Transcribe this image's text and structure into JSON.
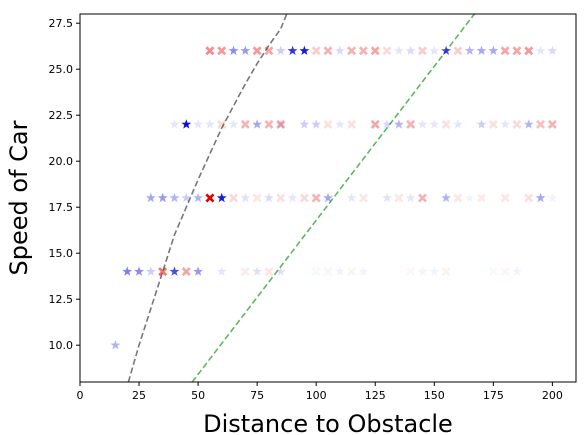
{
  "chart_data": {
    "type": "scatter",
    "title": "",
    "xlabel": "Distance to Obstacle",
    "ylabel": "Speed of Car",
    "xlim": [
      0,
      210
    ],
    "ylim": [
      8,
      28
    ],
    "grid": false,
    "x_ticks": [
      0,
      25,
      50,
      75,
      100,
      125,
      150,
      175,
      200
    ],
    "y_ticks": [
      10.0,
      12.5,
      15.0,
      17.5,
      20.0,
      22.5,
      25.0,
      27.5
    ],
    "x_tick_labels": [
      "0",
      "25",
      "50",
      "75",
      "100",
      "125",
      "150",
      "175",
      "200"
    ],
    "y_tick_labels": [
      "10.0",
      "12.5",
      "15.0",
      "17.5",
      "20.0",
      "22.5",
      "25.0",
      "27.5"
    ],
    "colors": {
      "star": "#0000dd",
      "cross": "#e00000",
      "dashed_gray": "#777777",
      "dashed_green": "#5cb85c"
    },
    "reference_lines": [
      {
        "name": "gray-dashed-curve",
        "style": "dashed",
        "color": "#777777",
        "points": [
          [
            20.5,
            8
          ],
          [
            25,
            10
          ],
          [
            30,
            12
          ],
          [
            35,
            14
          ],
          [
            40,
            16
          ],
          [
            45,
            17.5
          ],
          [
            50,
            19
          ],
          [
            55,
            20.4
          ],
          [
            60,
            21.8
          ],
          [
            65,
            23
          ],
          [
            70,
            24.2
          ],
          [
            75,
            25.3
          ],
          [
            80,
            26.3
          ],
          [
            85,
            27.2
          ],
          [
            87.5,
            28
          ]
        ]
      },
      {
        "name": "green-dashed-line",
        "style": "dashed",
        "color": "#5cb85c",
        "points": [
          [
            47.5,
            8
          ],
          [
            167,
            28
          ]
        ]
      }
    ],
    "series": [
      {
        "name": "stars",
        "marker": "star",
        "color": "#0000dd",
        "points": [
          {
            "x": 15,
            "y": 10,
            "a": 0.3
          },
          {
            "x": 20,
            "y": 14,
            "a": 0.5
          },
          {
            "x": 25,
            "y": 14,
            "a": 0.45
          },
          {
            "x": 30,
            "y": 14,
            "a": 0.2
          },
          {
            "x": 40,
            "y": 14,
            "a": 0.7
          },
          {
            "x": 50,
            "y": 14,
            "a": 0.4
          },
          {
            "x": 60,
            "y": 14,
            "a": 0.1
          },
          {
            "x": 75,
            "y": 14,
            "a": 0.12
          },
          {
            "x": 85,
            "y": 14,
            "a": 0.12
          },
          {
            "x": 110,
            "y": 14,
            "a": 0.05
          },
          {
            "x": 120,
            "y": 14,
            "a": 0.05
          },
          {
            "x": 145,
            "y": 14,
            "a": 0.05
          },
          {
            "x": 150,
            "y": 14,
            "a": 0.05
          },
          {
            "x": 185,
            "y": 14,
            "a": 0.05
          },
          {
            "x": 30,
            "y": 18,
            "a": 0.35
          },
          {
            "x": 35,
            "y": 18,
            "a": 0.4
          },
          {
            "x": 40,
            "y": 18,
            "a": 0.3
          },
          {
            "x": 45,
            "y": 18,
            "a": 0.2
          },
          {
            "x": 50,
            "y": 18,
            "a": 0.3
          },
          {
            "x": 60,
            "y": 18,
            "a": 0.9
          },
          {
            "x": 70,
            "y": 18,
            "a": 0.12
          },
          {
            "x": 80,
            "y": 18,
            "a": 0.15
          },
          {
            "x": 90,
            "y": 18,
            "a": 0.1
          },
          {
            "x": 105,
            "y": 18,
            "a": 0.35
          },
          {
            "x": 115,
            "y": 18,
            "a": 0.1
          },
          {
            "x": 130,
            "y": 18,
            "a": 0.12
          },
          {
            "x": 140,
            "y": 18,
            "a": 0.1
          },
          {
            "x": 155,
            "y": 18,
            "a": 0.3
          },
          {
            "x": 165,
            "y": 18,
            "a": 0.05
          },
          {
            "x": 195,
            "y": 18,
            "a": 0.35
          },
          {
            "x": 200,
            "y": 18,
            "a": 0.05
          },
          {
            "x": 40,
            "y": 22,
            "a": 0.1
          },
          {
            "x": 45,
            "y": 22,
            "a": 0.95
          },
          {
            "x": 50,
            "y": 22,
            "a": 0.1
          },
          {
            "x": 55,
            "y": 22,
            "a": 0.1
          },
          {
            "x": 65,
            "y": 22,
            "a": 0.1
          },
          {
            "x": 75,
            "y": 22,
            "a": 0.35
          },
          {
            "x": 85,
            "y": 22,
            "a": 0.1
          },
          {
            "x": 95,
            "y": 22,
            "a": 0.2
          },
          {
            "x": 100,
            "y": 22,
            "a": 0.2
          },
          {
            "x": 110,
            "y": 22,
            "a": 0.1
          },
          {
            "x": 130,
            "y": 22,
            "a": 0.15
          },
          {
            "x": 135,
            "y": 22,
            "a": 0.3
          },
          {
            "x": 145,
            "y": 22,
            "a": 0.1
          },
          {
            "x": 150,
            "y": 22,
            "a": 0.1
          },
          {
            "x": 160,
            "y": 22,
            "a": 0.1
          },
          {
            "x": 170,
            "y": 22,
            "a": 0.2
          },
          {
            "x": 180,
            "y": 22,
            "a": 0.1
          },
          {
            "x": 190,
            "y": 22,
            "a": 0.3
          },
          {
            "x": 65,
            "y": 26,
            "a": 0.45
          },
          {
            "x": 70,
            "y": 26,
            "a": 0.4
          },
          {
            "x": 85,
            "y": 26,
            "a": 0.2
          },
          {
            "x": 90,
            "y": 26,
            "a": 0.8
          },
          {
            "x": 95,
            "y": 26,
            "a": 0.9
          },
          {
            "x": 110,
            "y": 26,
            "a": 0.15
          },
          {
            "x": 135,
            "y": 26,
            "a": 0.1
          },
          {
            "x": 140,
            "y": 26,
            "a": 0.15
          },
          {
            "x": 150,
            "y": 26,
            "a": 0.1
          },
          {
            "x": 155,
            "y": 26,
            "a": 0.7
          },
          {
            "x": 165,
            "y": 26,
            "a": 0.3
          },
          {
            "x": 170,
            "y": 26,
            "a": 0.35
          },
          {
            "x": 175,
            "y": 26,
            "a": 0.35
          },
          {
            "x": 195,
            "y": 26,
            "a": 0.1
          },
          {
            "x": 200,
            "y": 26,
            "a": 0.15
          }
        ]
      },
      {
        "name": "crosses",
        "marker": "x",
        "color": "#e00000",
        "points": [
          {
            "x": 35,
            "y": 14,
            "a": 0.55
          },
          {
            "x": 45,
            "y": 14,
            "a": 0.35
          },
          {
            "x": 70,
            "y": 14,
            "a": 0.08
          },
          {
            "x": 80,
            "y": 14,
            "a": 0.1
          },
          {
            "x": 100,
            "y": 14,
            "a": 0.04
          },
          {
            "x": 105,
            "y": 14,
            "a": 0.04
          },
          {
            "x": 115,
            "y": 14,
            "a": 0.05
          },
          {
            "x": 140,
            "y": 14,
            "a": 0.04
          },
          {
            "x": 155,
            "y": 14,
            "a": 0.05
          },
          {
            "x": 175,
            "y": 14,
            "a": 0.04
          },
          {
            "x": 180,
            "y": 14,
            "a": 0.04
          },
          {
            "x": 55,
            "y": 18,
            "a": 1.0
          },
          {
            "x": 65,
            "y": 18,
            "a": 0.15
          },
          {
            "x": 75,
            "y": 18,
            "a": 0.1
          },
          {
            "x": 85,
            "y": 18,
            "a": 0.12
          },
          {
            "x": 95,
            "y": 18,
            "a": 0.15
          },
          {
            "x": 100,
            "y": 18,
            "a": 0.3
          },
          {
            "x": 120,
            "y": 18,
            "a": 0.1
          },
          {
            "x": 135,
            "y": 18,
            "a": 0.1
          },
          {
            "x": 145,
            "y": 18,
            "a": 0.3
          },
          {
            "x": 160,
            "y": 18,
            "a": 0.1
          },
          {
            "x": 170,
            "y": 18,
            "a": 0.08
          },
          {
            "x": 180,
            "y": 18,
            "a": 0.1
          },
          {
            "x": 190,
            "y": 18,
            "a": 0.12
          },
          {
            "x": 60,
            "y": 22,
            "a": 0.15
          },
          {
            "x": 70,
            "y": 22,
            "a": 0.3
          },
          {
            "x": 80,
            "y": 22,
            "a": 0.3
          },
          {
            "x": 85,
            "y": 22,
            "a": 0.35
          },
          {
            "x": 105,
            "y": 22,
            "a": 0.12
          },
          {
            "x": 115,
            "y": 22,
            "a": 0.12
          },
          {
            "x": 125,
            "y": 22,
            "a": 0.35
          },
          {
            "x": 140,
            "y": 22,
            "a": 0.3
          },
          {
            "x": 155,
            "y": 22,
            "a": 0.12
          },
          {
            "x": 175,
            "y": 22,
            "a": 0.12
          },
          {
            "x": 185,
            "y": 22,
            "a": 0.15
          },
          {
            "x": 195,
            "y": 22,
            "a": 0.25
          },
          {
            "x": 200,
            "y": 22,
            "a": 0.3
          },
          {
            "x": 55,
            "y": 26,
            "a": 0.45
          },
          {
            "x": 60,
            "y": 26,
            "a": 0.4
          },
          {
            "x": 75,
            "y": 26,
            "a": 0.4
          },
          {
            "x": 80,
            "y": 26,
            "a": 0.35
          },
          {
            "x": 100,
            "y": 26,
            "a": 0.2
          },
          {
            "x": 105,
            "y": 26,
            "a": 0.3
          },
          {
            "x": 115,
            "y": 26,
            "a": 0.3
          },
          {
            "x": 120,
            "y": 26,
            "a": 0.3
          },
          {
            "x": 125,
            "y": 26,
            "a": 0.35
          },
          {
            "x": 130,
            "y": 26,
            "a": 0.15
          },
          {
            "x": 145,
            "y": 26,
            "a": 0.2
          },
          {
            "x": 160,
            "y": 26,
            "a": 0.2
          },
          {
            "x": 180,
            "y": 26,
            "a": 0.35
          },
          {
            "x": 185,
            "y": 26,
            "a": 0.35
          },
          {
            "x": 190,
            "y": 26,
            "a": 0.4
          }
        ]
      }
    ]
  }
}
